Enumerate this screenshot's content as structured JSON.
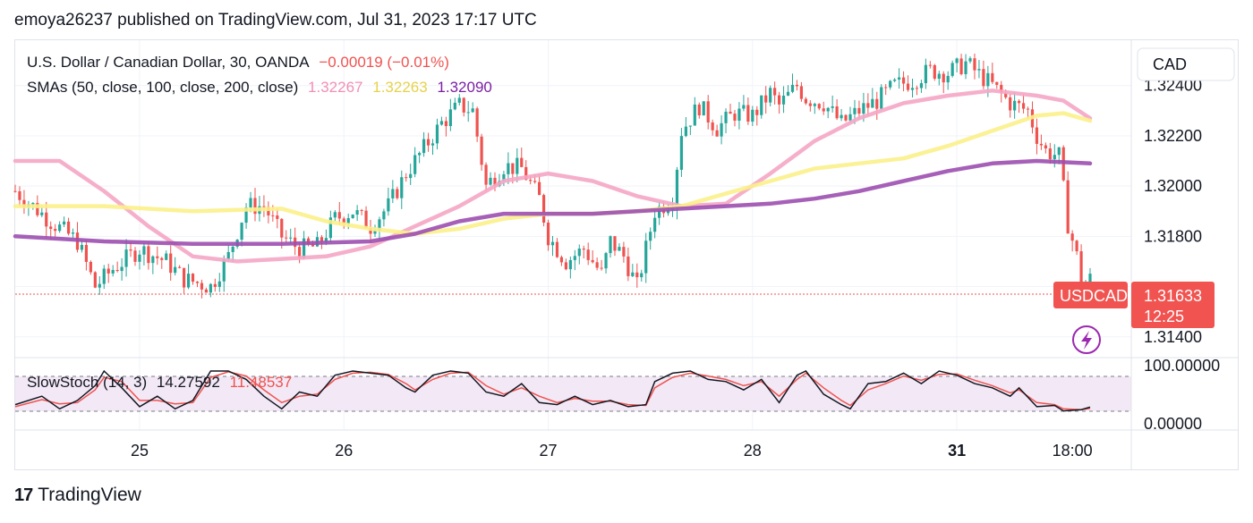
{
  "header": {
    "publisher_line": "emoya26237 published on TradingView.com, Jul 31, 2023 17:17 UTC"
  },
  "legend": {
    "symbol": "U.S. Dollar / Canadian Dollar, 30, OANDA",
    "change": "−0.00019 (−0.01%)",
    "sma_label": "SMAs (50, close, 100, close, 200, close)",
    "sma50": "1.32267",
    "sma100": "1.32263",
    "sma200": "1.32090",
    "stoch_label": "SlowStoch (14, 3)",
    "stoch_k": "14.27592",
    "stoch_d": "11.48537"
  },
  "currency_button": "CAD",
  "price_axis": {
    "ticks": [
      "1.32400",
      "1.32200",
      "1.32000",
      "1.31800",
      "1.31400"
    ],
    "current_price": "1.31633",
    "countdown": "12:25",
    "symbol_tag": "USDCAD"
  },
  "stoch_axis": {
    "ticks": [
      "100.00000",
      "0.00000"
    ]
  },
  "time_axis": {
    "ticks": [
      "25",
      "26",
      "27",
      "28",
      "31",
      "18:00"
    ]
  },
  "footer": {
    "brand": "TradingView",
    "logo_glyph": "17"
  },
  "colors": {
    "up": "#26a69a",
    "down": "#ef5350",
    "sma50": "#f5a6c4",
    "sma100": "#fbef8a",
    "sma200": "#9c4fb0",
    "stoch_k": "#131722",
    "stoch_d": "#ef5350",
    "stoch_band": "#f3e8f5"
  },
  "chart_data": {
    "type": "candlestick",
    "symbol": "U.S. Dollar / Canadian Dollar, 30, OANDA",
    "ylim": [
      1.3136,
      1.3252
    ],
    "stoch_ylim": [
      0,
      100
    ],
    "stoch_bands": [
      80,
      20
    ],
    "x_ticks": [
      "25",
      "26",
      "27",
      "28",
      "31",
      "18:00"
    ],
    "close_path": [
      [
        0,
        1.3198
      ],
      [
        8,
        1.3186
      ],
      [
        14,
        1.3178
      ],
      [
        18,
        1.316
      ],
      [
        22,
        1.3167
      ],
      [
        28,
        1.3175
      ],
      [
        34,
        1.317
      ],
      [
        38,
        1.3163
      ],
      [
        44,
        1.316
      ],
      [
        48,
        1.3172
      ],
      [
        52,
        1.3192
      ],
      [
        56,
        1.3192
      ],
      [
        60,
        1.318
      ],
      [
        64,
        1.3175
      ],
      [
        68,
        1.3176
      ],
      [
        72,
        1.3187
      ],
      [
        76,
        1.319
      ],
      [
        80,
        1.3184
      ],
      [
        84,
        1.3192
      ],
      [
        88,
        1.3205
      ],
      [
        92,
        1.3215
      ],
      [
        96,
        1.3225
      ],
      [
        100,
        1.3232
      ],
      [
        103,
        1.323
      ],
      [
        106,
        1.32
      ],
      [
        110,
        1.3208
      ],
      [
        114,
        1.3207
      ],
      [
        118,
        1.3195
      ],
      [
        120,
        1.318
      ],
      [
        124,
        1.317
      ],
      [
        128,
        1.3175
      ],
      [
        132,
        1.3165
      ],
      [
        134,
        1.3178
      ],
      [
        137,
        1.3172
      ],
      [
        140,
        1.316
      ],
      [
        144,
        1.319
      ],
      [
        148,
        1.3195
      ],
      [
        150,
        1.3222
      ],
      [
        154,
        1.3232
      ],
      [
        158,
        1.3223
      ],
      [
        162,
        1.3229
      ],
      [
        166,
        1.3228
      ],
      [
        170,
        1.3237
      ],
      [
        172,
        1.3232
      ],
      [
        176,
        1.324
      ],
      [
        178,
        1.3235
      ],
      [
        182,
        1.3233
      ],
      [
        186,
        1.3225
      ],
      [
        190,
        1.323
      ],
      [
        194,
        1.3234
      ],
      [
        198,
        1.324
      ],
      [
        202,
        1.3242
      ],
      [
        206,
        1.3246
      ],
      [
        210,
        1.3245
      ],
      [
        214,
        1.3249
      ],
      [
        218,
        1.3243
      ],
      [
        220,
        1.324
      ],
      [
        224,
        1.3233
      ],
      [
        228,
        1.323
      ],
      [
        230,
        1.322
      ],
      [
        232,
        1.3214
      ],
      [
        235,
        1.3212
      ],
      [
        237,
        1.3185
      ],
      [
        239,
        1.3172
      ],
      [
        240,
        1.316
      ],
      [
        242,
        1.3163
      ]
    ],
    "sma": [
      {
        "name": "SMA 50",
        "value": 1.32267,
        "path": [
          [
            0,
            1.321
          ],
          [
            10,
            1.321
          ],
          [
            20,
            1.3198
          ],
          [
            30,
            1.3184
          ],
          [
            40,
            1.3172
          ],
          [
            50,
            1.317
          ],
          [
            60,
            1.3171
          ],
          [
            70,
            1.3172
          ],
          [
            80,
            1.3176
          ],
          [
            90,
            1.3184
          ],
          [
            100,
            1.3192
          ],
          [
            110,
            1.3202
          ],
          [
            120,
            1.3205
          ],
          [
            130,
            1.3202
          ],
          [
            140,
            1.3196
          ],
          [
            150,
            1.3192
          ],
          [
            160,
            1.3193
          ],
          [
            170,
            1.3205
          ],
          [
            180,
            1.3218
          ],
          [
            190,
            1.3227
          ],
          [
            200,
            1.3233
          ],
          [
            210,
            1.3236
          ],
          [
            220,
            1.3238
          ],
          [
            230,
            1.3236
          ],
          [
            236,
            1.3234
          ],
          [
            242,
            1.3227
          ]
        ]
      },
      {
        "name": "SMA 100",
        "value": 1.32263,
        "path": [
          [
            0,
            1.3192
          ],
          [
            20,
            1.3192
          ],
          [
            40,
            1.319
          ],
          [
            60,
            1.3191
          ],
          [
            70,
            1.3186
          ],
          [
            80,
            1.3183
          ],
          [
            90,
            1.3181
          ],
          [
            100,
            1.3183
          ],
          [
            110,
            1.3187
          ],
          [
            120,
            1.3189
          ],
          [
            130,
            1.3189
          ],
          [
            140,
            1.319
          ],
          [
            150,
            1.3192
          ],
          [
            160,
            1.3197
          ],
          [
            170,
            1.3202
          ],
          [
            180,
            1.3207
          ],
          [
            190,
            1.3209
          ],
          [
            200,
            1.3211
          ],
          [
            210,
            1.3216
          ],
          [
            220,
            1.3222
          ],
          [
            230,
            1.3228
          ],
          [
            236,
            1.3229
          ],
          [
            242,
            1.3226
          ]
        ]
      },
      {
        "name": "SMA 200",
        "value": 1.3209,
        "path": [
          [
            0,
            1.318
          ],
          [
            20,
            1.3178
          ],
          [
            40,
            1.3177
          ],
          [
            60,
            1.3177
          ],
          [
            80,
            1.3178
          ],
          [
            90,
            1.3181
          ],
          [
            100,
            1.3186
          ],
          [
            110,
            1.3189
          ],
          [
            120,
            1.3189
          ],
          [
            130,
            1.3189
          ],
          [
            140,
            1.319
          ],
          [
            150,
            1.3191
          ],
          [
            160,
            1.3192
          ],
          [
            170,
            1.3193
          ],
          [
            180,
            1.3195
          ],
          [
            190,
            1.3198
          ],
          [
            200,
            1.3202
          ],
          [
            210,
            1.3206
          ],
          [
            220,
            1.3209
          ],
          [
            230,
            1.321
          ],
          [
            242,
            1.3209
          ]
        ]
      }
    ],
    "stoch": {
      "k": [
        [
          0,
          20
        ],
        [
          6,
          40
        ],
        [
          10,
          10
        ],
        [
          14,
          30
        ],
        [
          18,
          65
        ],
        [
          20,
          100
        ],
        [
          24,
          60
        ],
        [
          28,
          15
        ],
        [
          32,
          40
        ],
        [
          36,
          10
        ],
        [
          40,
          30
        ],
        [
          44,
          100
        ],
        [
          48,
          100
        ],
        [
          52,
          80
        ],
        [
          56,
          40
        ],
        [
          60,
          10
        ],
        [
          64,
          50
        ],
        [
          68,
          40
        ],
        [
          72,
          90
        ],
        [
          76,
          100
        ],
        [
          80,
          95
        ],
        [
          84,
          90
        ],
        [
          88,
          60
        ],
        [
          90,
          50
        ],
        [
          94,
          90
        ],
        [
          98,
          100
        ],
        [
          102,
          95
        ],
        [
          106,
          50
        ],
        [
          110,
          40
        ],
        [
          114,
          70
        ],
        [
          118,
          25
        ],
        [
          122,
          20
        ],
        [
          126,
          40
        ],
        [
          130,
          20
        ],
        [
          134,
          30
        ],
        [
          138,
          15
        ],
        [
          142,
          20
        ],
        [
          144,
          75
        ],
        [
          148,
          95
        ],
        [
          152,
          100
        ],
        [
          156,
          80
        ],
        [
          160,
          75
        ],
        [
          164,
          55
        ],
        [
          168,
          80
        ],
        [
          172,
          25
        ],
        [
          176,
          90
        ],
        [
          178,
          100
        ],
        [
          182,
          45
        ],
        [
          186,
          20
        ],
        [
          188,
          10
        ],
        [
          192,
          70
        ],
        [
          196,
          75
        ],
        [
          200,
          95
        ],
        [
          204,
          70
        ],
        [
          208,
          100
        ],
        [
          212,
          90
        ],
        [
          216,
          70
        ],
        [
          220,
          60
        ],
        [
          224,
          40
        ],
        [
          226,
          60
        ],
        [
          230,
          15
        ],
        [
          234,
          18
        ],
        [
          236,
          5
        ],
        [
          240,
          8
        ],
        [
          242,
          14
        ]
      ],
      "d": [
        [
          0,
          15
        ],
        [
          6,
          32
        ],
        [
          10,
          22
        ],
        [
          14,
          25
        ],
        [
          18,
          55
        ],
        [
          20,
          85
        ],
        [
          24,
          75
        ],
        [
          28,
          30
        ],
        [
          32,
          30
        ],
        [
          36,
          22
        ],
        [
          40,
          25
        ],
        [
          44,
          85
        ],
        [
          48,
          98
        ],
        [
          52,
          88
        ],
        [
          56,
          55
        ],
        [
          60,
          25
        ],
        [
          64,
          40
        ],
        [
          68,
          45
        ],
        [
          72,
          80
        ],
        [
          76,
          95
        ],
        [
          80,
          97
        ],
        [
          84,
          92
        ],
        [
          88,
          70
        ],
        [
          90,
          55
        ],
        [
          94,
          80
        ],
        [
          98,
          95
        ],
        [
          102,
          97
        ],
        [
          106,
          65
        ],
        [
          110,
          45
        ],
        [
          114,
          60
        ],
        [
          118,
          40
        ],
        [
          122,
          25
        ],
        [
          126,
          35
        ],
        [
          130,
          28
        ],
        [
          134,
          28
        ],
        [
          138,
          20
        ],
        [
          142,
          18
        ],
        [
          144,
          60
        ],
        [
          148,
          85
        ],
        [
          152,
          95
        ],
        [
          156,
          88
        ],
        [
          160,
          80
        ],
        [
          164,
          65
        ],
        [
          168,
          75
        ],
        [
          172,
          40
        ],
        [
          176,
          80
        ],
        [
          178,
          95
        ],
        [
          182,
          60
        ],
        [
          186,
          30
        ],
        [
          188,
          18
        ],
        [
          192,
          55
        ],
        [
          196,
          70
        ],
        [
          200,
          88
        ],
        [
          204,
          78
        ],
        [
          208,
          92
        ],
        [
          212,
          93
        ],
        [
          216,
          78
        ],
        [
          220,
          65
        ],
        [
          224,
          48
        ],
        [
          226,
          55
        ],
        [
          230,
          25
        ],
        [
          234,
          20
        ],
        [
          236,
          10
        ],
        [
          240,
          8
        ],
        [
          242,
          11
        ]
      ]
    }
  }
}
